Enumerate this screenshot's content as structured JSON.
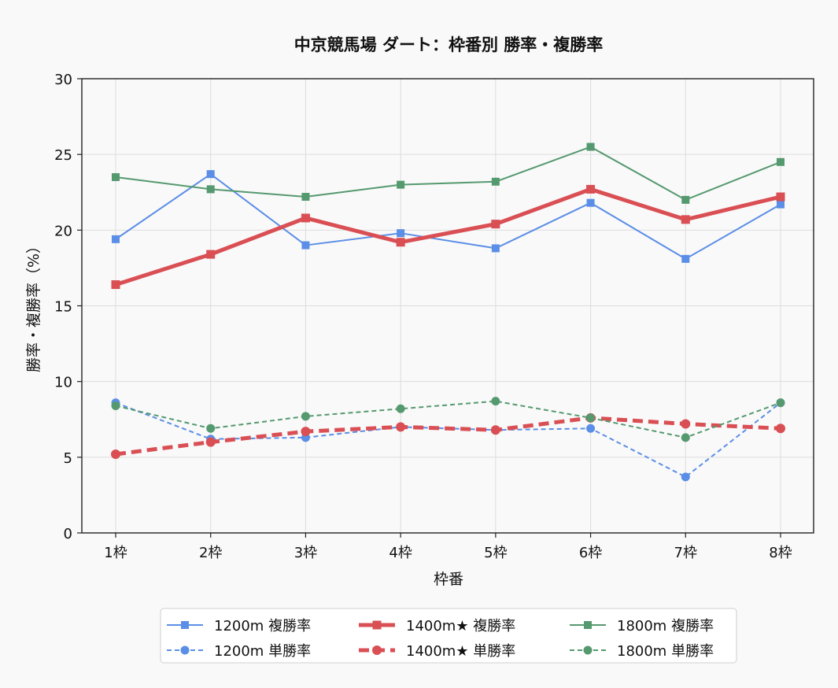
{
  "chart_data": {
    "type": "line",
    "title": "中京競馬場 ダート：枠番別 勝率・複勝率",
    "xlabel": "枠番",
    "ylabel": "勝率・複勝率（%）",
    "categories": [
      "1枠",
      "2枠",
      "3枠",
      "4枠",
      "5枠",
      "6枠",
      "7枠",
      "8枠"
    ],
    "ylim": [
      0,
      30
    ],
    "yticks": [
      0,
      5,
      10,
      15,
      20,
      25,
      30
    ],
    "grid": true,
    "legend_position": "bottom-center",
    "series": [
      {
        "name": "1200m 複勝率",
        "values": [
          19.4,
          23.7,
          19.0,
          19.8,
          18.8,
          21.8,
          18.1,
          21.7
        ],
        "color": "#5b8ee6",
        "marker": "square",
        "dash": "solid",
        "width": 2
      },
      {
        "name": "1200m 単勝率",
        "values": [
          8.6,
          6.2,
          6.3,
          7.0,
          6.8,
          6.9,
          3.7,
          8.6
        ],
        "color": "#5b8ee6",
        "marker": "circle",
        "dash": "dashed",
        "width": 2
      },
      {
        "name": "1400m★ 複勝率",
        "values": [
          16.4,
          18.4,
          20.8,
          19.2,
          20.4,
          22.7,
          20.7,
          22.2
        ],
        "color": "#d94f54",
        "marker": "square",
        "dash": "solid",
        "width": 5
      },
      {
        "name": "1400m★ 単勝率",
        "values": [
          5.2,
          6.0,
          6.7,
          7.0,
          6.8,
          7.6,
          7.2,
          6.9
        ],
        "color": "#d94f54",
        "marker": "circle",
        "dash": "dashed",
        "width": 5
      },
      {
        "name": "1800m 複勝率",
        "values": [
          23.5,
          22.7,
          22.2,
          23.0,
          23.2,
          25.5,
          22.0,
          24.5
        ],
        "color": "#55996f",
        "marker": "square",
        "dash": "solid",
        "width": 2
      },
      {
        "name": "1800m 単勝率",
        "values": [
          8.4,
          6.9,
          7.7,
          8.2,
          8.7,
          7.6,
          6.3,
          8.6
        ],
        "color": "#55996f",
        "marker": "circle",
        "dash": "dashed",
        "width": 2
      }
    ]
  }
}
